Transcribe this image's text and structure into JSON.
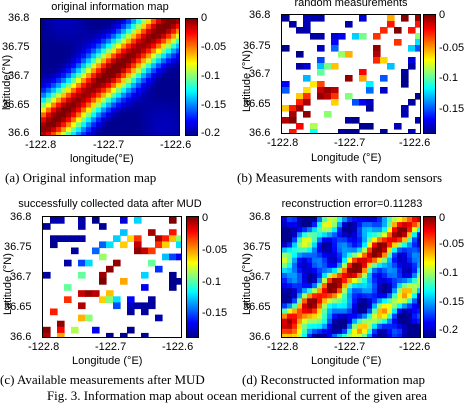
{
  "panels": [
    {
      "title": "original information map",
      "xlabel": "longitude(°E)",
      "ylabel": "latitude(°N)",
      "caption": "(a) Original information map",
      "xticks": [
        "-122.8",
        "-122.7",
        "-122.6"
      ],
      "yticks": [
        "36.8",
        "36.75",
        "36.7",
        "36.65",
        "36.6"
      ],
      "cticks": [
        "0",
        "-0.05",
        "-0.1",
        "-0.15",
        "-0.2"
      ]
    },
    {
      "title": "random measurements",
      "xlabel": "Longitude (°E)",
      "ylabel": "Latitude (°N)",
      "caption": "(b) Measurements with random sensors",
      "xticks": [
        "-122.8",
        "-122.7",
        "-122.6"
      ],
      "yticks": [
        "36.8",
        "36.75",
        "36.7",
        "36.65",
        "36.6"
      ],
      "cticks": [
        "0",
        "-0.05",
        "-0.1",
        "-0.15"
      ]
    },
    {
      "title": "successfully collected data after MUD",
      "xlabel": "Longitude (°E)",
      "ylabel": "Latitude (°N)",
      "caption": "(c) Available measurements after MUD",
      "xticks": [
        "-122.8",
        "-122.7",
        "-122.6"
      ],
      "yticks": [
        "36.8",
        "36.75",
        "36.7",
        "36.65",
        "36.6"
      ],
      "cticks": [
        "0",
        "-0.05",
        "-0.1",
        "-0.15"
      ]
    },
    {
      "title": "reconstruction error=0.11283",
      "xlabel": "Longitude (°E)",
      "ylabel": "Latitude (°N)",
      "caption": "(d) Reconstructed information map",
      "xticks": [
        "-122.8",
        "-122.7",
        "-122.6"
      ],
      "yticks": [
        "36.8",
        "36.75",
        "36.7",
        "36.65",
        "36.6"
      ],
      "cticks": [
        "0",
        "-0.05",
        "-0.1",
        "-0.15",
        "-0.2"
      ]
    }
  ],
  "figure_caption": "Fig. 3.   Information map about ocean meridional current of the given area",
  "colormap": [
    "#00008f",
    "#0000ff",
    "#0080ff",
    "#00ffff",
    "#80ff80",
    "#ffff00",
    "#ff8000",
    "#ff0000",
    "#7f0000"
  ]
}
